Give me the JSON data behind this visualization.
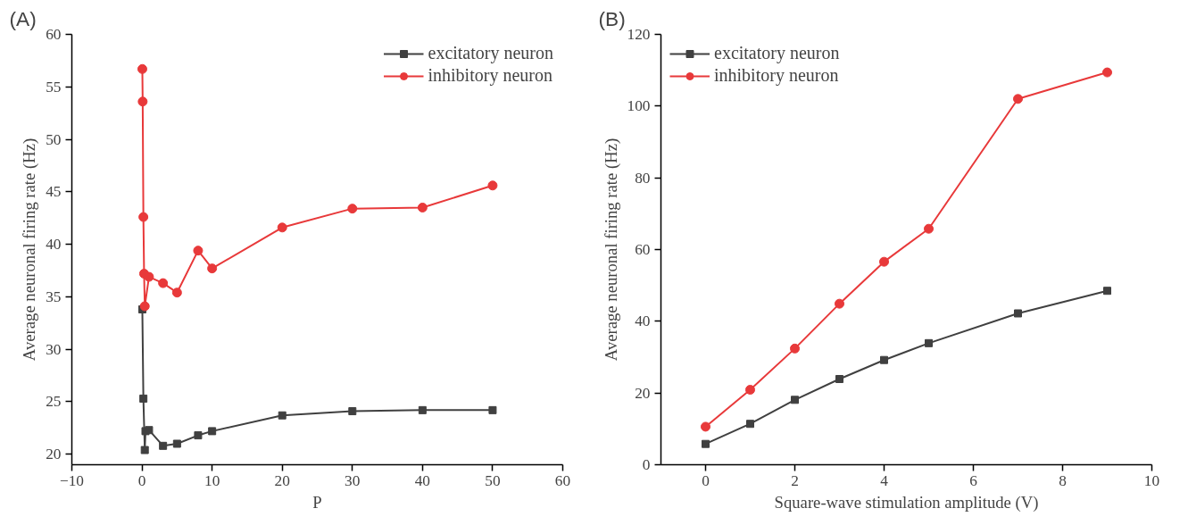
{
  "chart_data": [
    {
      "type": "line",
      "title": "(A)",
      "xlabel": "P",
      "ylabel": "Average neuronal firing rate (Hz)",
      "xlim": [
        -10,
        60
      ],
      "xticks": [
        -10,
        0,
        10,
        20,
        30,
        40,
        50,
        60
      ],
      "ylim": [
        19,
        60
      ],
      "yticks": [
        20,
        25,
        30,
        35,
        40,
        45,
        50,
        55,
        60
      ],
      "grid": false,
      "legend": "top right",
      "line_style": "solid",
      "series": [
        {
          "name": "excitatory neuron",
          "color": "#404040",
          "marker": "square",
          "x": [
            0.05,
            0.2,
            0.4,
            0.5,
            1,
            3,
            5,
            8,
            10,
            20,
            30,
            40,
            50
          ],
          "values": [
            33.8,
            25.3,
            20.4,
            22.2,
            22.3,
            20.8,
            21.0,
            21.8,
            22.2,
            23.7,
            24.1,
            24.2,
            24.2
          ]
        },
        {
          "name": "inhibitory neuron",
          "color": "#e8393a",
          "marker": "circle",
          "x": [
            0.05,
            0.1,
            0.2,
            0.3,
            0.4,
            1,
            3,
            5,
            8,
            10,
            20,
            30,
            40,
            50
          ],
          "values": [
            56.7,
            53.6,
            42.6,
            37.2,
            34.1,
            36.9,
            36.3,
            35.4,
            39.4,
            37.7,
            41.6,
            43.4,
            43.5,
            45.6
          ]
        }
      ]
    },
    {
      "type": "line",
      "title": "(B)",
      "xlabel": "Square-wave stimulation amplitude (V)",
      "ylabel": "Average neuronal firing rate (Hz)",
      "xlim": [
        -1,
        10
      ],
      "xticks": [
        0,
        2,
        4,
        6,
        8,
        10
      ],
      "ylim": [
        0,
        120
      ],
      "yticks": [
        0,
        20,
        40,
        60,
        80,
        100,
        120
      ],
      "grid": false,
      "legend": "top left",
      "line_style": "solid",
      "series": [
        {
          "name": "excitatory neuron",
          "color": "#404040",
          "marker": "square",
          "x": [
            0,
            1,
            2,
            3,
            4,
            5,
            7,
            9
          ],
          "values": [
            5.8,
            11.4,
            18.1,
            23.9,
            29.2,
            33.9,
            42.2,
            48.5
          ]
        },
        {
          "name": "inhibitory neuron",
          "color": "#e8393a",
          "marker": "circle",
          "x": [
            0,
            1,
            2,
            3,
            4,
            5,
            7,
            9
          ],
          "values": [
            10.6,
            20.9,
            32.4,
            44.9,
            56.6,
            65.8,
            102,
            109.4
          ]
        }
      ]
    }
  ]
}
